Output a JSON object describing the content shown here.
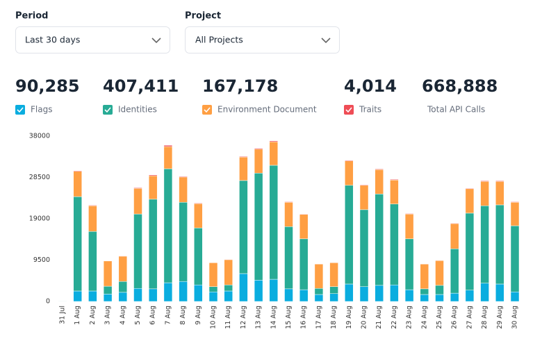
{
  "filters": [
    {
      "label": "Period",
      "value": "Last 30 days"
    },
    {
      "label": "Project",
      "value": "All Projects"
    }
  ],
  "total_api_calls": {
    "value": "668,888",
    "label": "Total API Calls"
  },
  "chart_data": {
    "type": "stacked-bar",
    "categories": [
      "31 Jul",
      "1 Aug",
      "2 Aug",
      "3 Aug",
      "4 Aug",
      "5 Aug",
      "6 Aug",
      "7 Aug",
      "8 Aug",
      "9 Aug",
      "10 Aug",
      "11 Aug",
      "12 Aug",
      "13 Aug",
      "14 Aug",
      "15 Aug",
      "16 Aug",
      "17 Aug",
      "18 Aug",
      "19 Aug",
      "20 Aug",
      "21 Aug",
      "22 Aug",
      "23 Aug",
      "24 Aug",
      "25 Aug",
      "26 Aug",
      "27 Aug",
      "28 Aug",
      "29 Aug",
      "30 Aug"
    ],
    "ylim": [
      0,
      38000
    ],
    "yticks": [
      0,
      9500,
      19000,
      28500,
      38000
    ],
    "grid": false,
    "series": [
      {
        "name": "Flags",
        "total": "90,285",
        "color": "#0aaddf",
        "values": [
          50,
          2400,
          2400,
          1700,
          2100,
          3000,
          2900,
          4300,
          4600,
          3800,
          2200,
          2400,
          6400,
          4900,
          5100,
          2900,
          2700,
          1600,
          1800,
          4000,
          3400,
          3700,
          3800,
          2700,
          1600,
          1600,
          1900,
          2600,
          4200,
          4000,
          2200
        ]
      },
      {
        "name": "Identities",
        "total": "407,411",
        "color": "#27ab95",
        "values": [
          50,
          21700,
          13700,
          1800,
          2500,
          17100,
          20600,
          26200,
          18200,
          13100,
          1200,
          1400,
          21400,
          24600,
          26200,
          14300,
          11700,
          1400,
          1600,
          22700,
          17700,
          21000,
          18600,
          11700,
          1300,
          2100,
          10200,
          17700,
          17800,
          18200,
          15200
        ]
      },
      {
        "name": "Environment Document",
        "total": "167,178",
        "color": "#ff9f43",
        "values": [
          0,
          5800,
          5900,
          5800,
          5800,
          5900,
          5400,
          5100,
          5800,
          5600,
          5500,
          5800,
          5400,
          5500,
          5400,
          5600,
          5600,
          5600,
          5500,
          5600,
          5600,
          5600,
          5500,
          5700,
          5700,
          5700,
          5800,
          5600,
          5600,
          5400,
          5400
        ]
      },
      {
        "name": "Traits",
        "total": "4,014",
        "color": "#ef4d56",
        "values": [
          0,
          150,
          120,
          80,
          100,
          150,
          200,
          300,
          150,
          120,
          80,
          90,
          150,
          200,
          200,
          120,
          110,
          80,
          90,
          150,
          130,
          140,
          150,
          110,
          80,
          90,
          120,
          130,
          150,
          150,
          120
        ]
      }
    ]
  }
}
